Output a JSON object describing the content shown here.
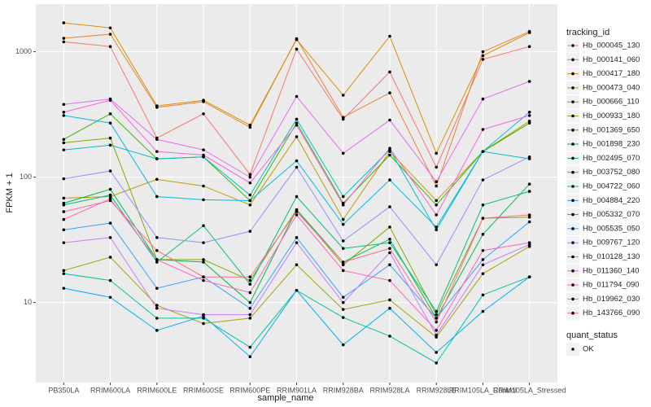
{
  "chart_data": {
    "type": "line",
    "x_label": "sample_name",
    "y_label": "FPKM + 1",
    "log_y": true,
    "grid": true,
    "legend_title": "tracking_id",
    "shape_legend_title": "quant_status",
    "shape_legend_labels": [
      "OK"
    ],
    "categories": [
      "PB350LA",
      "RRIM600LA",
      "RRIM600LE",
      "RRIM600SE",
      "RRIM600PE",
      "RRIM901LA",
      "RRIM928BA",
      "RRIM928LA",
      "RRIM928LE",
      "RRIM105LA_Control",
      "RRIM105LA_Stressed"
    ],
    "ylim": [
      2.3,
      2400
    ],
    "yticks": [
      10,
      100,
      1000
    ],
    "series": [
      {
        "name": "Hb_000045_130",
        "color": "#F8766D",
        "values": [
          1200,
          1100,
          205,
          320,
          105,
          1050,
          290,
          690,
          120,
          870,
          1100
        ]
      },
      {
        "name": "Hb_000141_060",
        "color": "#EA8331",
        "values": [
          1280,
          1380,
          360,
          400,
          250,
          1270,
          300,
          470,
          85,
          1000,
          1450
        ]
      },
      {
        "name": "Hb_000417_180",
        "color": "#D89000",
        "values": [
          1700,
          1550,
          370,
          410,
          260,
          1250,
          450,
          1330,
          155,
          930,
          1420
        ]
      },
      {
        "name": "Hb_000473_040",
        "color": "#C09B00",
        "values": [
          68,
          70,
          96,
          85,
          60,
          210,
          46,
          160,
          65,
          160,
          280
        ]
      },
      {
        "name": "Hb_000666_110",
        "color": "#A3A500",
        "values": [
          18,
          23,
          9.5,
          6.8,
          7.5,
          20,
          8.8,
          10.5,
          5.3,
          17,
          28
        ]
      },
      {
        "name": "Hb_000933_180",
        "color": "#7CAE00",
        "values": [
          188,
          205,
          22,
          22,
          15,
          55,
          20,
          40,
          8,
          47,
          48
        ]
      },
      {
        "name": "Hb_001369_650",
        "color": "#39B600",
        "values": [
          200,
          320,
          140,
          145,
          65,
          270,
          62,
          150,
          60,
          160,
          270
        ]
      },
      {
        "name": "Hb_001898_230",
        "color": "#00BB4E",
        "values": [
          62,
          80,
          22,
          21,
          10,
          55,
          21,
          32,
          7.5,
          35,
          88
        ]
      },
      {
        "name": "Hb_002495_070",
        "color": "#00BF7D",
        "values": [
          60,
          72,
          21,
          41,
          14,
          70,
          27,
          30,
          8.5,
          60,
          77
        ]
      },
      {
        "name": "Hb_003752_080",
        "color": "#00C1A3",
        "values": [
          17,
          15,
          7.5,
          7.5,
          4.4,
          12.5,
          7.6,
          5.4,
          3.3,
          11.5,
          16
        ]
      },
      {
        "name": "Hb_004722_060",
        "color": "#00BFC4",
        "values": [
          165,
          180,
          140,
          145,
          72,
          290,
          70,
          165,
          38,
          160,
          140
        ]
      },
      {
        "name": "Hb_004884_220",
        "color": "#00BAE0",
        "values": [
          310,
          270,
          70,
          66,
          65,
          135,
          42,
          95,
          40,
          160,
          330
        ]
      },
      {
        "name": "Hb_005332_070",
        "color": "#00B0F6",
        "values": [
          13,
          11,
          6,
          7.8,
          3.7,
          12.5,
          4.6,
          9,
          4,
          8.5,
          16
        ]
      },
      {
        "name": "Hb_005535_050",
        "color": "#35A2FF",
        "values": [
          38,
          43,
          13,
          16,
          9,
          33,
          11,
          20,
          7.5,
          22,
          44
        ]
      },
      {
        "name": "Hb_009767_120",
        "color": "#9590FF",
        "values": [
          97,
          112,
          33,
          30,
          37,
          120,
          31,
          58,
          20,
          95,
          145
        ]
      },
      {
        "name": "Hb_010128_130",
        "color": "#C77CFF",
        "values": [
          30,
          33,
          9,
          8,
          8,
          30,
          10,
          25,
          5.5,
          20,
          29
        ]
      },
      {
        "name": "Hb_011360_140",
        "color": "#E76BF3",
        "values": [
          380,
          420,
          200,
          165,
          100,
          440,
          155,
          285,
          92,
          420,
          580
        ]
      },
      {
        "name": "Hb_011794_090",
        "color": "#FA62DB",
        "values": [
          330,
          410,
          160,
          150,
          90,
          260,
          60,
          170,
          50,
          240,
          310
        ]
      },
      {
        "name": "Hb_019962_030",
        "color": "#FF62BC",
        "values": [
          46,
          67,
          22,
          15,
          12,
          50,
          18,
          15,
          6,
          26,
          30
        ]
      },
      {
        "name": "Hb_143766_090",
        "color": "#FF6C90",
        "values": [
          53,
          65,
          26,
          16,
          16,
          53,
          21,
          27,
          7,
          47,
          50
        ]
      }
    ]
  }
}
